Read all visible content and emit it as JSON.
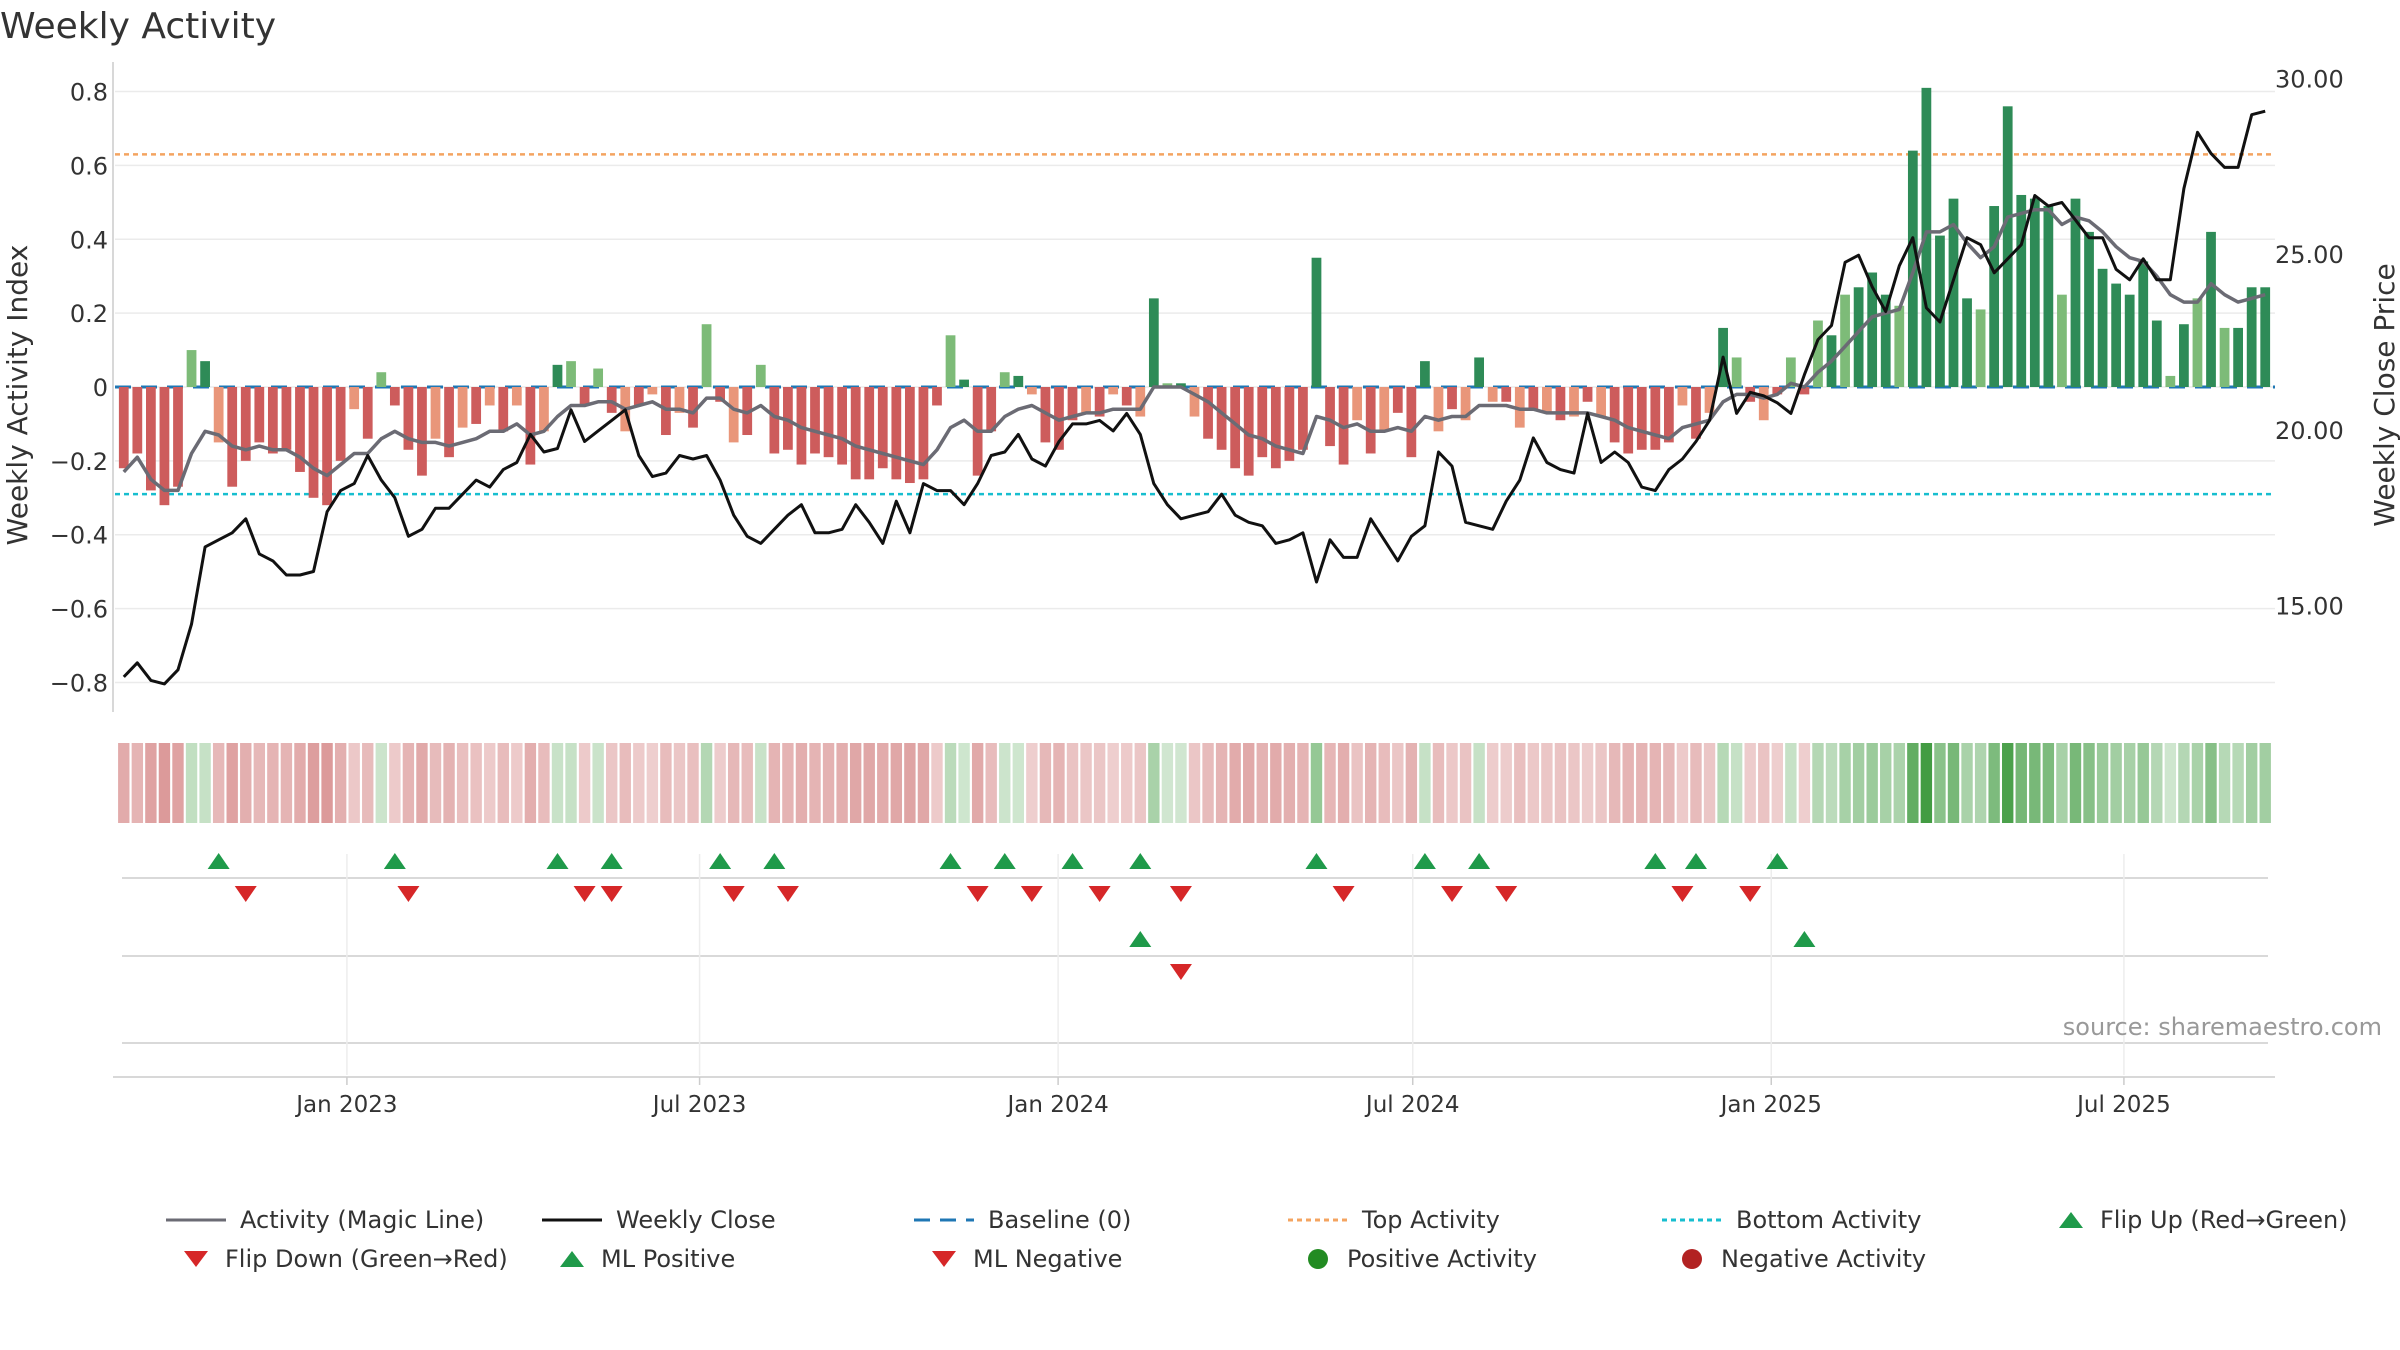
{
  "title": "Weekly Activity",
  "source": "source: sharemaestro.com",
  "colors": {
    "pos_strong": "#2e8b57",
    "pos_light": "#7dbb78",
    "neg_strong": "#cd5c5c",
    "neg_light": "#e9967a",
    "magic_line": "#6b6b74",
    "close_line": "#111111",
    "baseline": "#1f77b4",
    "top_activity": "#f4a460",
    "bottom_activity": "#17becf",
    "flip_up": "#1f9a4a",
    "flip_down": "#d62728",
    "positive_dot": "#228b22",
    "negative_dot": "#b22222"
  },
  "chart_data": {
    "type": "bar",
    "title": "Weekly Activity",
    "ylabel": "Weekly Activity Index",
    "y2label": "Weekly Close Price",
    "ylim": [
      -0.88,
      0.88
    ],
    "y_ticks": [
      "0.8",
      "0.6",
      "0.4",
      "0.2",
      "0",
      "−0.2",
      "−0.4",
      "−0.6",
      "−0.8"
    ],
    "y_tick_values": [
      0.8,
      0.6,
      0.4,
      0.2,
      0,
      -0.2,
      -0.4,
      -0.6,
      -0.8
    ],
    "y2lim": [
      12.0,
      30.5
    ],
    "y2_ticks": [
      "30.00",
      "25.00",
      "20.00",
      "15.00"
    ],
    "y2_tick_values": [
      30,
      25,
      20,
      15
    ],
    "x_start": "2022-09-05",
    "x_end": "2025-09-15",
    "x_ticks": [
      "Jan 2023",
      "Jul 2023",
      "Jan 2024",
      "Jul 2024",
      "Jan 2025",
      "Jul 2025"
    ],
    "x_tick_dates": [
      "2023-01-01",
      "2023-07-01",
      "2024-01-01",
      "2024-07-01",
      "2025-01-01",
      "2025-07-01"
    ],
    "top_activity": 0.63,
    "bottom_activity": -0.29,
    "baseline": 0,
    "activity": [
      -0.22,
      -0.18,
      -0.28,
      -0.32,
      -0.27,
      0.1,
      0.07,
      -0.15,
      -0.27,
      -0.2,
      -0.15,
      -0.18,
      -0.17,
      -0.23,
      -0.3,
      -0.32,
      -0.2,
      -0.06,
      -0.14,
      0.04,
      -0.05,
      -0.17,
      -0.24,
      -0.14,
      -0.19,
      -0.11,
      -0.1,
      -0.05,
      -0.12,
      -0.05,
      -0.21,
      -0.12,
      0.06,
      0.07,
      -0.05,
      0.05,
      -0.07,
      -0.12,
      -0.05,
      -0.02,
      -0.13,
      -0.07,
      -0.11,
      0.17,
      -0.04,
      -0.15,
      -0.13,
      0.06,
      -0.18,
      -0.17,
      -0.21,
      -0.18,
      -0.19,
      -0.21,
      -0.25,
      -0.25,
      -0.22,
      -0.25,
      -0.26,
      -0.25,
      -0.05,
      0.14,
      0.02,
      -0.24,
      -0.12,
      0.04,
      0.03,
      -0.02,
      -0.15,
      -0.17,
      -0.09,
      -0.07,
      -0.08,
      -0.02,
      -0.05,
      -0.08,
      0.24,
      0.01,
      0.01,
      -0.08,
      -0.14,
      -0.17,
      -0.22,
      -0.24,
      -0.19,
      -0.22,
      -0.2,
      -0.17,
      0.35,
      -0.16,
      -0.21,
      -0.09,
      -0.18,
      -0.12,
      -0.07,
      -0.19,
      0.07,
      -0.12,
      -0.06,
      -0.09,
      0.08,
      -0.04,
      -0.04,
      -0.11,
      -0.06,
      -0.07,
      -0.09,
      -0.08,
      -0.04,
      -0.08,
      -0.15,
      -0.18,
      -0.17,
      -0.17,
      -0.15,
      -0.05,
      -0.14,
      -0.07,
      0.16,
      0.08,
      -0.04,
      -0.09,
      -0.02,
      0.08,
      -0.02,
      0.18,
      0.14,
      0.25,
      0.27,
      0.31,
      0.25,
      0.22,
      0.64,
      0.81,
      0.41,
      0.51,
      0.24,
      0.21,
      0.49,
      0.76,
      0.52,
      0.51,
      0.49,
      0.25,
      0.51,
      0.42,
      0.32,
      0.28,
      0.25,
      0.34,
      0.18,
      0.03,
      0.17,
      0.24,
      0.42,
      0.16,
      0.16,
      0.27,
      0.27
    ],
    "magic_line": [
      -0.23,
      -0.19,
      -0.25,
      -0.28,
      -0.28,
      -0.18,
      -0.12,
      -0.13,
      -0.16,
      -0.17,
      -0.16,
      -0.17,
      -0.17,
      -0.19,
      -0.22,
      -0.24,
      -0.21,
      -0.18,
      -0.18,
      -0.14,
      -0.12,
      -0.14,
      -0.15,
      -0.15,
      -0.16,
      -0.15,
      -0.14,
      -0.12,
      -0.12,
      -0.1,
      -0.13,
      -0.12,
      -0.08,
      -0.05,
      -0.05,
      -0.04,
      -0.04,
      -0.06,
      -0.05,
      -0.04,
      -0.06,
      -0.06,
      -0.07,
      -0.03,
      -0.03,
      -0.06,
      -0.07,
      -0.05,
      -0.08,
      -0.09,
      -0.11,
      -0.12,
      -0.13,
      -0.14,
      -0.16,
      -0.17,
      -0.18,
      -0.19,
      -0.2,
      -0.21,
      -0.17,
      -0.11,
      -0.09,
      -0.12,
      -0.12,
      -0.08,
      -0.06,
      -0.05,
      -0.07,
      -0.09,
      -0.08,
      -0.07,
      -0.07,
      -0.06,
      -0.06,
      -0.06,
      0.0,
      0.0,
      0.0,
      -0.02,
      -0.04,
      -0.07,
      -0.1,
      -0.13,
      -0.14,
      -0.16,
      -0.17,
      -0.18,
      -0.08,
      -0.09,
      -0.11,
      -0.1,
      -0.12,
      -0.12,
      -0.11,
      -0.12,
      -0.08,
      -0.09,
      -0.08,
      -0.08,
      -0.05,
      -0.05,
      -0.05,
      -0.06,
      -0.06,
      -0.07,
      -0.07,
      -0.07,
      -0.07,
      -0.08,
      -0.09,
      -0.11,
      -0.12,
      -0.13,
      -0.14,
      -0.11,
      -0.1,
      -0.09,
      -0.04,
      -0.02,
      -0.02,
      -0.03,
      -0.02,
      0.01,
      0.0,
      0.04,
      0.07,
      0.11,
      0.15,
      0.19,
      0.2,
      0.21,
      0.31,
      0.42,
      0.42,
      0.44,
      0.39,
      0.35,
      0.38,
      0.46,
      0.47,
      0.48,
      0.48,
      0.44,
      0.46,
      0.45,
      0.42,
      0.38,
      0.35,
      0.34,
      0.3,
      0.25,
      0.23,
      0.23,
      0.28,
      0.25,
      0.23,
      0.24,
      0.25
    ],
    "weekly_close": [
      13.0,
      13.4,
      12.9,
      12.8,
      13.2,
      14.5,
      16.7,
      16.9,
      17.1,
      17.5,
      16.5,
      16.3,
      15.9,
      15.9,
      16.0,
      17.7,
      18.3,
      18.5,
      19.3,
      18.6,
      18.1,
      17.0,
      17.2,
      17.8,
      17.8,
      18.2,
      18.6,
      18.4,
      18.9,
      19.1,
      19.9,
      19.4,
      19.5,
      20.6,
      19.7,
      20.0,
      20.3,
      20.6,
      19.3,
      18.7,
      18.8,
      19.3,
      19.2,
      19.3,
      18.6,
      17.6,
      17.0,
      16.8,
      17.2,
      17.6,
      17.9,
      17.1,
      17.1,
      17.2,
      17.9,
      17.4,
      16.8,
      18.0,
      17.1,
      18.5,
      18.3,
      18.3,
      17.9,
      18.5,
      19.3,
      19.4,
      19.9,
      19.2,
      19.0,
      19.7,
      20.2,
      20.2,
      20.3,
      20.0,
      20.5,
      19.9,
      18.5,
      17.9,
      17.5,
      17.6,
      17.7,
      18.2,
      17.6,
      17.4,
      17.3,
      16.8,
      16.9,
      17.1,
      15.7,
      16.9,
      16.4,
      16.4,
      17.5,
      16.9,
      16.3,
      17.0,
      17.3,
      19.4,
      19.0,
      17.4,
      17.3,
      17.2,
      18.0,
      18.6,
      19.8,
      19.1,
      18.9,
      18.8,
      20.5,
      19.1,
      19.4,
      19.1,
      18.4,
      18.3,
      18.9,
      19.2,
      19.7,
      20.3,
      22.1,
      20.5,
      21.1,
      21.0,
      20.8,
      20.5,
      21.6,
      22.6,
      23.0,
      24.8,
      25.0,
      24.1,
      23.4,
      24.7,
      25.5,
      23.5,
      23.1,
      24.3,
      25.5,
      25.3,
      24.5,
      24.9,
      25.3,
      26.7,
      26.4,
      26.5,
      26.0,
      25.5,
      25.5,
      24.6,
      24.3,
      24.9,
      24.3,
      24.3,
      26.9,
      28.5,
      27.9,
      27.5,
      27.5,
      29.0,
      29.1
    ],
    "flip_up_weeks": [
      7,
      20,
      32,
      36,
      44,
      48,
      61,
      65,
      70,
      75,
      88,
      96,
      100,
      113,
      116,
      122
    ],
    "flip_down_weeks": [
      9,
      21,
      34,
      36,
      45,
      49,
      63,
      67,
      72,
      78,
      90,
      98,
      102,
      115,
      120
    ],
    "ml_positive_weeks": [
      75,
      124
    ],
    "ml_negative_weeks": [
      78
    ]
  },
  "legend": {
    "magic_line": "Activity (Magic Line)",
    "weekly_close": "Weekly Close",
    "baseline": "Baseline (0)",
    "top_activity": "Top Activity",
    "bottom_activity": "Bottom Activity",
    "flip_up": "Flip Up (Red→Green)",
    "flip_down": "Flip Down (Green→Red)",
    "ml_positive": "ML Positive",
    "ml_negative": "ML Negative",
    "positive_activity": "Positive Activity",
    "negative_activity": "Negative Activity"
  }
}
